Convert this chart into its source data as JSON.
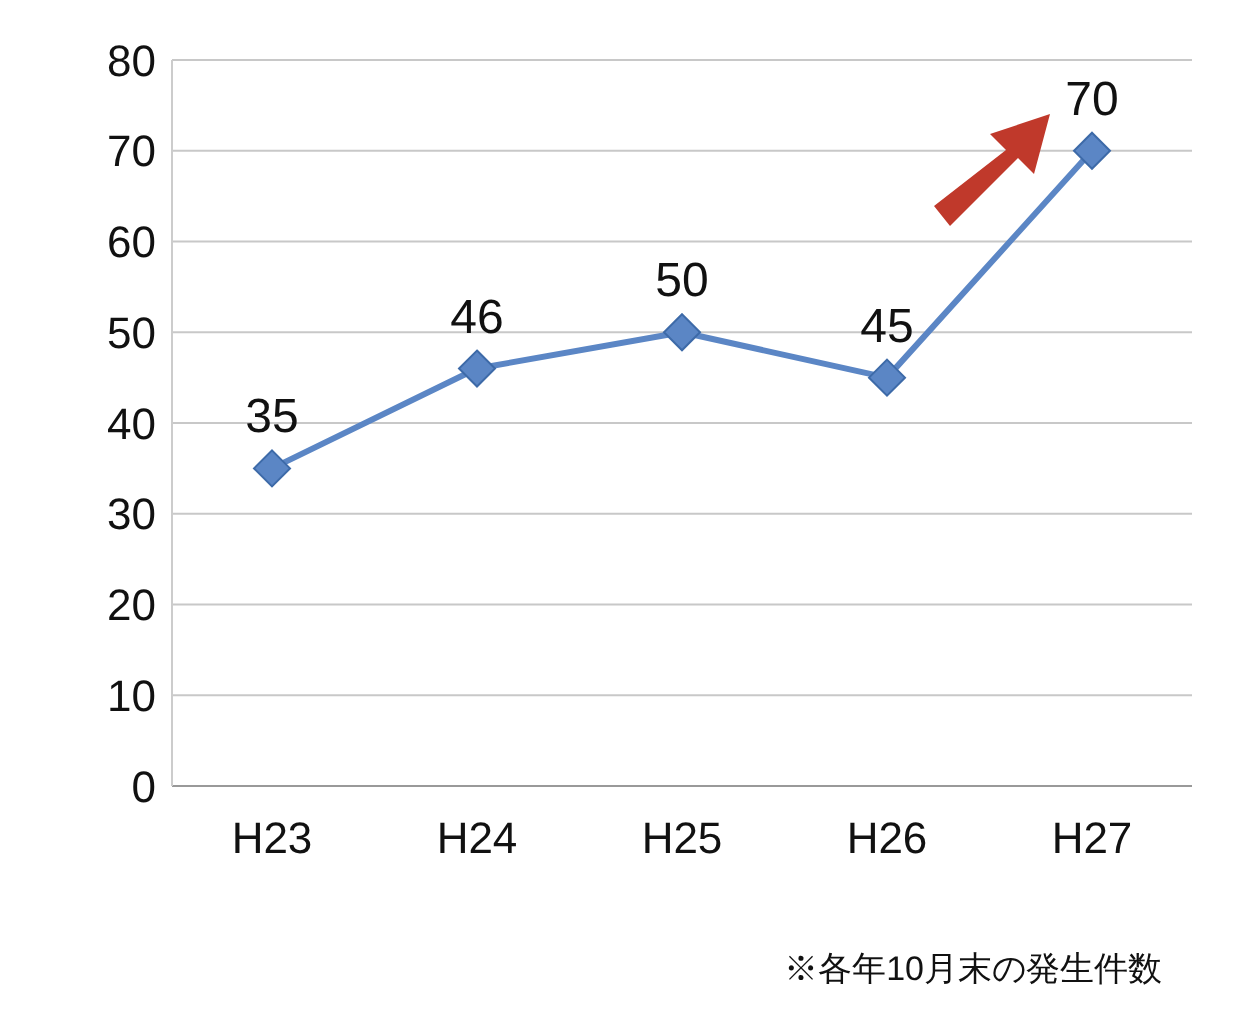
{
  "chart_data": {
    "type": "line",
    "categories": [
      "H23",
      "H24",
      "H25",
      "H26",
      "H27"
    ],
    "series": [
      {
        "color": "#5b86c5",
        "values": [
          35,
          46,
          50,
          45,
          70
        ]
      }
    ],
    "ylim": [
      0,
      80
    ],
    "yticks": [
      0,
      10,
      20,
      30,
      40,
      50,
      60,
      70,
      80
    ],
    "grid": "y",
    "marker": "diamond",
    "line_style": "solid",
    "data_labels": true,
    "annotations": [
      "※各年10月末の発生件数"
    ]
  }
}
